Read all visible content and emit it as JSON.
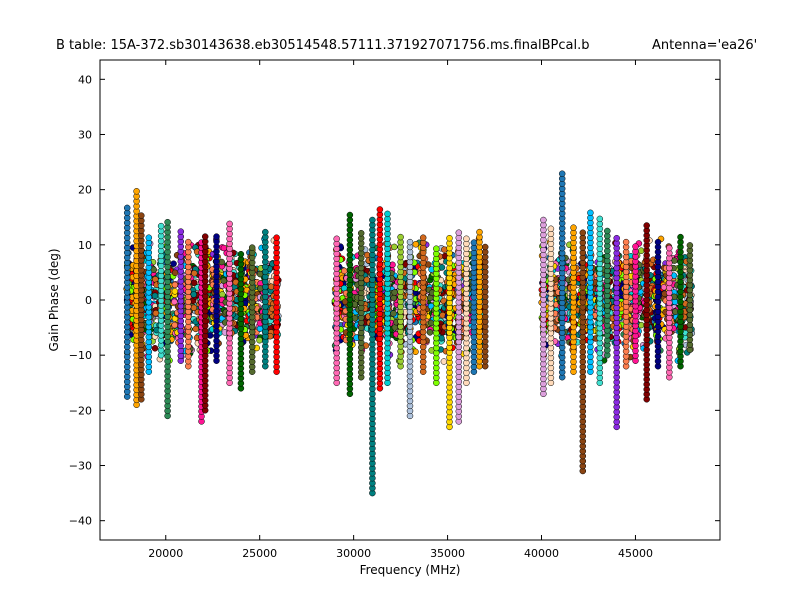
{
  "chart_data": {
    "type": "scatter",
    "title": "B table: 15A-372.sb30143638.eb30514548.57111.371927071756.ms.finalBPcal.b",
    "subtitle": "Antenna='ea26'",
    "xlabel": "Frequency (MHz)",
    "ylabel": "Gain Phase (deg)",
    "xlim": [
      16500,
      49500
    ],
    "ylim": [
      -43.5,
      43.5
    ],
    "xticks": [
      20000,
      25000,
      30000,
      35000,
      40000,
      45000
    ],
    "xtick_labels": [
      "20000",
      "25000",
      "30000",
      "35000",
      "40000",
      "45000"
    ],
    "yticks": [
      -40,
      -30,
      -20,
      -10,
      0,
      10,
      20,
      30,
      40
    ],
    "ytick_labels": [
      "−40",
      "−30",
      "−20",
      "−10",
      "0",
      "10",
      "20",
      "30",
      "40"
    ],
    "grid": false,
    "marker": "circle",
    "groups": [
      {
        "range": [
          17900,
          26000
        ],
        "spws": 16,
        "columns": [
          {
            "x": 17950,
            "min": -17.5,
            "max": 17
          },
          {
            "x": 18450,
            "min": -19,
            "max": 20
          },
          {
            "x": 18700,
            "min": -18,
            "max": 16
          },
          {
            "x": 19100,
            "min": -13,
            "max": 12
          },
          {
            "x": 19750,
            "min": -10,
            "max": 14
          },
          {
            "x": 20100,
            "min": -21,
            "max": 15
          },
          {
            "x": 20800,
            "min": -11,
            "max": 13
          },
          {
            "x": 21200,
            "min": -12,
            "max": 11
          },
          {
            "x": 21900,
            "min": -22,
            "max": 11
          },
          {
            "x": 22100,
            "min": -20,
            "max": 12
          },
          {
            "x": 22700,
            "min": -11,
            "max": 12
          },
          {
            "x": 23400,
            "min": -15,
            "max": 14
          },
          {
            "x": 24000,
            "min": -16,
            "max": 9
          },
          {
            "x": 24600,
            "min": -13,
            "max": 10
          },
          {
            "x": 25300,
            "min": -12,
            "max": 13
          },
          {
            "x": 25900,
            "min": -13,
            "max": 12
          }
        ]
      },
      {
        "range": [
          29000,
          37000
        ],
        "spws": 16,
        "columns": [
          {
            "x": 29100,
            "min": -15,
            "max": 12
          },
          {
            "x": 29800,
            "min": -17,
            "max": 16
          },
          {
            "x": 30400,
            "min": -14,
            "max": 13
          },
          {
            "x": 31000,
            "min": -35,
            "max": 15
          },
          {
            "x": 31400,
            "min": -16,
            "max": 17
          },
          {
            "x": 31800,
            "min": -15,
            "max": 16
          },
          {
            "x": 32500,
            "min": -12,
            "max": 12
          },
          {
            "x": 33000,
            "min": -21,
            "max": 11
          },
          {
            "x": 33700,
            "min": -13,
            "max": 12
          },
          {
            "x": 34400,
            "min": -15,
            "max": 10
          },
          {
            "x": 35100,
            "min": -23,
            "max": 12
          },
          {
            "x": 35600,
            "min": -22,
            "max": 13
          },
          {
            "x": 36000,
            "min": -15,
            "max": 12
          },
          {
            "x": 36400,
            "min": -13,
            "max": 11
          },
          {
            "x": 36700,
            "min": -12,
            "max": 13
          },
          {
            "x": 37000,
            "min": -12,
            "max": 10
          }
        ]
      },
      {
        "range": [
          40000,
          48000
        ],
        "spws": 16,
        "columns": [
          {
            "x": 40100,
            "min": -17,
            "max": 15
          },
          {
            "x": 40500,
            "min": -15,
            "max": 13
          },
          {
            "x": 41100,
            "min": -14,
            "max": 23
          },
          {
            "x": 41700,
            "min": -13,
            "max": 14
          },
          {
            "x": 42200,
            "min": -31,
            "max": 13
          },
          {
            "x": 42600,
            "min": -13,
            "max": 16
          },
          {
            "x": 43100,
            "min": -15,
            "max": 15
          },
          {
            "x": 43500,
            "min": -10,
            "max": 13
          },
          {
            "x": 44000,
            "min": -23,
            "max": 12
          },
          {
            "x": 44500,
            "min": -12,
            "max": 11
          },
          {
            "x": 45000,
            "min": -11,
            "max": 10
          },
          {
            "x": 45600,
            "min": -18,
            "max": 14
          },
          {
            "x": 46200,
            "min": -12,
            "max": 11
          },
          {
            "x": 46800,
            "min": -14,
            "max": 10
          },
          {
            "x": 47400,
            "min": -12,
            "max": 12
          },
          {
            "x": 47900,
            "min": -9,
            "max": 10
          }
        ]
      }
    ],
    "palette": [
      "#1f77b4",
      "#2e8b57",
      "#000080",
      "#ff0000",
      "#7fff00",
      "#ffa500",
      "#8a2be2",
      "#ff69b4",
      "#00ced1",
      "#ffd700",
      "#8b4513",
      "#ff7f50",
      "#006400",
      "#9acd32",
      "#dda0dd",
      "#00bfff",
      "#ff1493",
      "#556b2f",
      "#b0c4de",
      "#ffdab9",
      "#40e0d0",
      "#800000",
      "#008080",
      "#d2691e"
    ]
  }
}
